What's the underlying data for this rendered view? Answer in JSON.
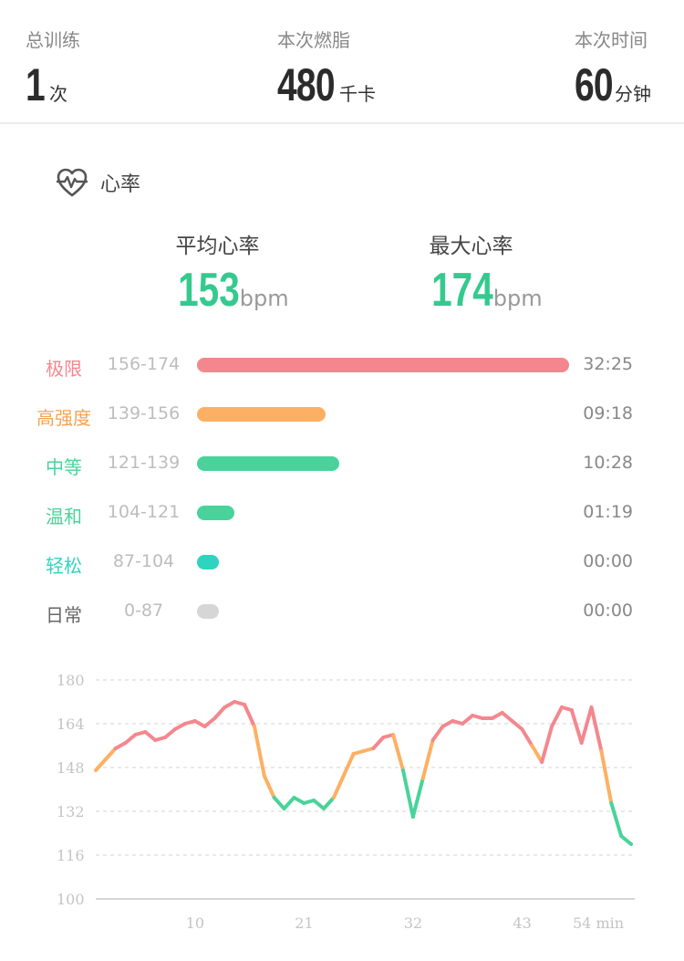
{
  "summary": {
    "total": {
      "label": "总训练",
      "value": "1",
      "unit": "次"
    },
    "burn": {
      "label": "本次燃脂",
      "value": "480",
      "unit": "千卡"
    },
    "time": {
      "label": "本次时间",
      "value": "60",
      "unit": "分钟"
    }
  },
  "section": {
    "title": "心率",
    "icon": "heart-pulse-icon"
  },
  "heart_rate": {
    "avg": {
      "label": "平均心率",
      "value": "153",
      "unit": "bpm"
    },
    "max": {
      "label": "最大心率",
      "value": "174",
      "unit": "bpm"
    }
  },
  "zones": [
    {
      "name": "极限",
      "range": "156-174",
      "time": "32:25",
      "fraction": 1.0,
      "color": "#f4878e"
    },
    {
      "name": "高强度",
      "range": "139-156",
      "time": "09:18",
      "fraction": 0.345,
      "color": "#fdb063"
    },
    {
      "name": "中等",
      "range": "121-139",
      "time": "10:28",
      "fraction": 0.383,
      "color": "#49d39a"
    },
    {
      "name": "温和",
      "range": "104-121",
      "time": "01:19",
      "fraction": 0.1,
      "color": "#49d39a"
    },
    {
      "name": "轻松",
      "range": "87-104",
      "time": "00:00",
      "fraction": 0.06,
      "color": "#2fd4c0"
    },
    {
      "name": "日常",
      "range": "0-87",
      "time": "00:00",
      "fraction": 0.06,
      "color": "#d6d6d6"
    }
  ],
  "chart_data": {
    "type": "line",
    "x_ticks": [
      "10",
      "21",
      "32",
      "43",
      "54 min"
    ],
    "x_tick_values": [
      10,
      21,
      32,
      43,
      54
    ],
    "y_ticks": [
      "180",
      "164",
      "148",
      "132",
      "116",
      "100"
    ],
    "ylim": [
      100,
      180
    ],
    "xlim": [
      0,
      54
    ],
    "grid": true,
    "zone_colors": {
      "limit": "#f4878e",
      "high": "#fdb063",
      "moderate": "#49d39a"
    },
    "series": [
      {
        "x": [
          0,
          1,
          2,
          3,
          4,
          5,
          6,
          7,
          8,
          9,
          10,
          11,
          12,
          13,
          14,
          15,
          16,
          17,
          18,
          19,
          20,
          21,
          22,
          23,
          24,
          25,
          26,
          27,
          28,
          29,
          30,
          31,
          32,
          33,
          34,
          35,
          36,
          37,
          38,
          39,
          40,
          41,
          42,
          43,
          44,
          45,
          46,
          47,
          48,
          49,
          50,
          51,
          52,
          53,
          54
        ],
        "y": [
          147,
          151,
          155,
          157,
          160,
          161,
          158,
          159,
          162,
          164,
          165,
          163,
          166,
          170,
          172,
          171,
          163,
          145,
          137,
          133,
          137,
          135,
          136,
          133,
          137,
          145,
          153,
          154,
          155,
          159,
          160,
          147,
          130,
          144,
          158,
          163,
          165,
          164,
          167,
          166,
          166,
          168,
          165,
          162,
          156,
          150,
          163,
          170,
          169,
          157,
          170,
          154,
          135,
          123,
          120
        ]
      }
    ]
  }
}
